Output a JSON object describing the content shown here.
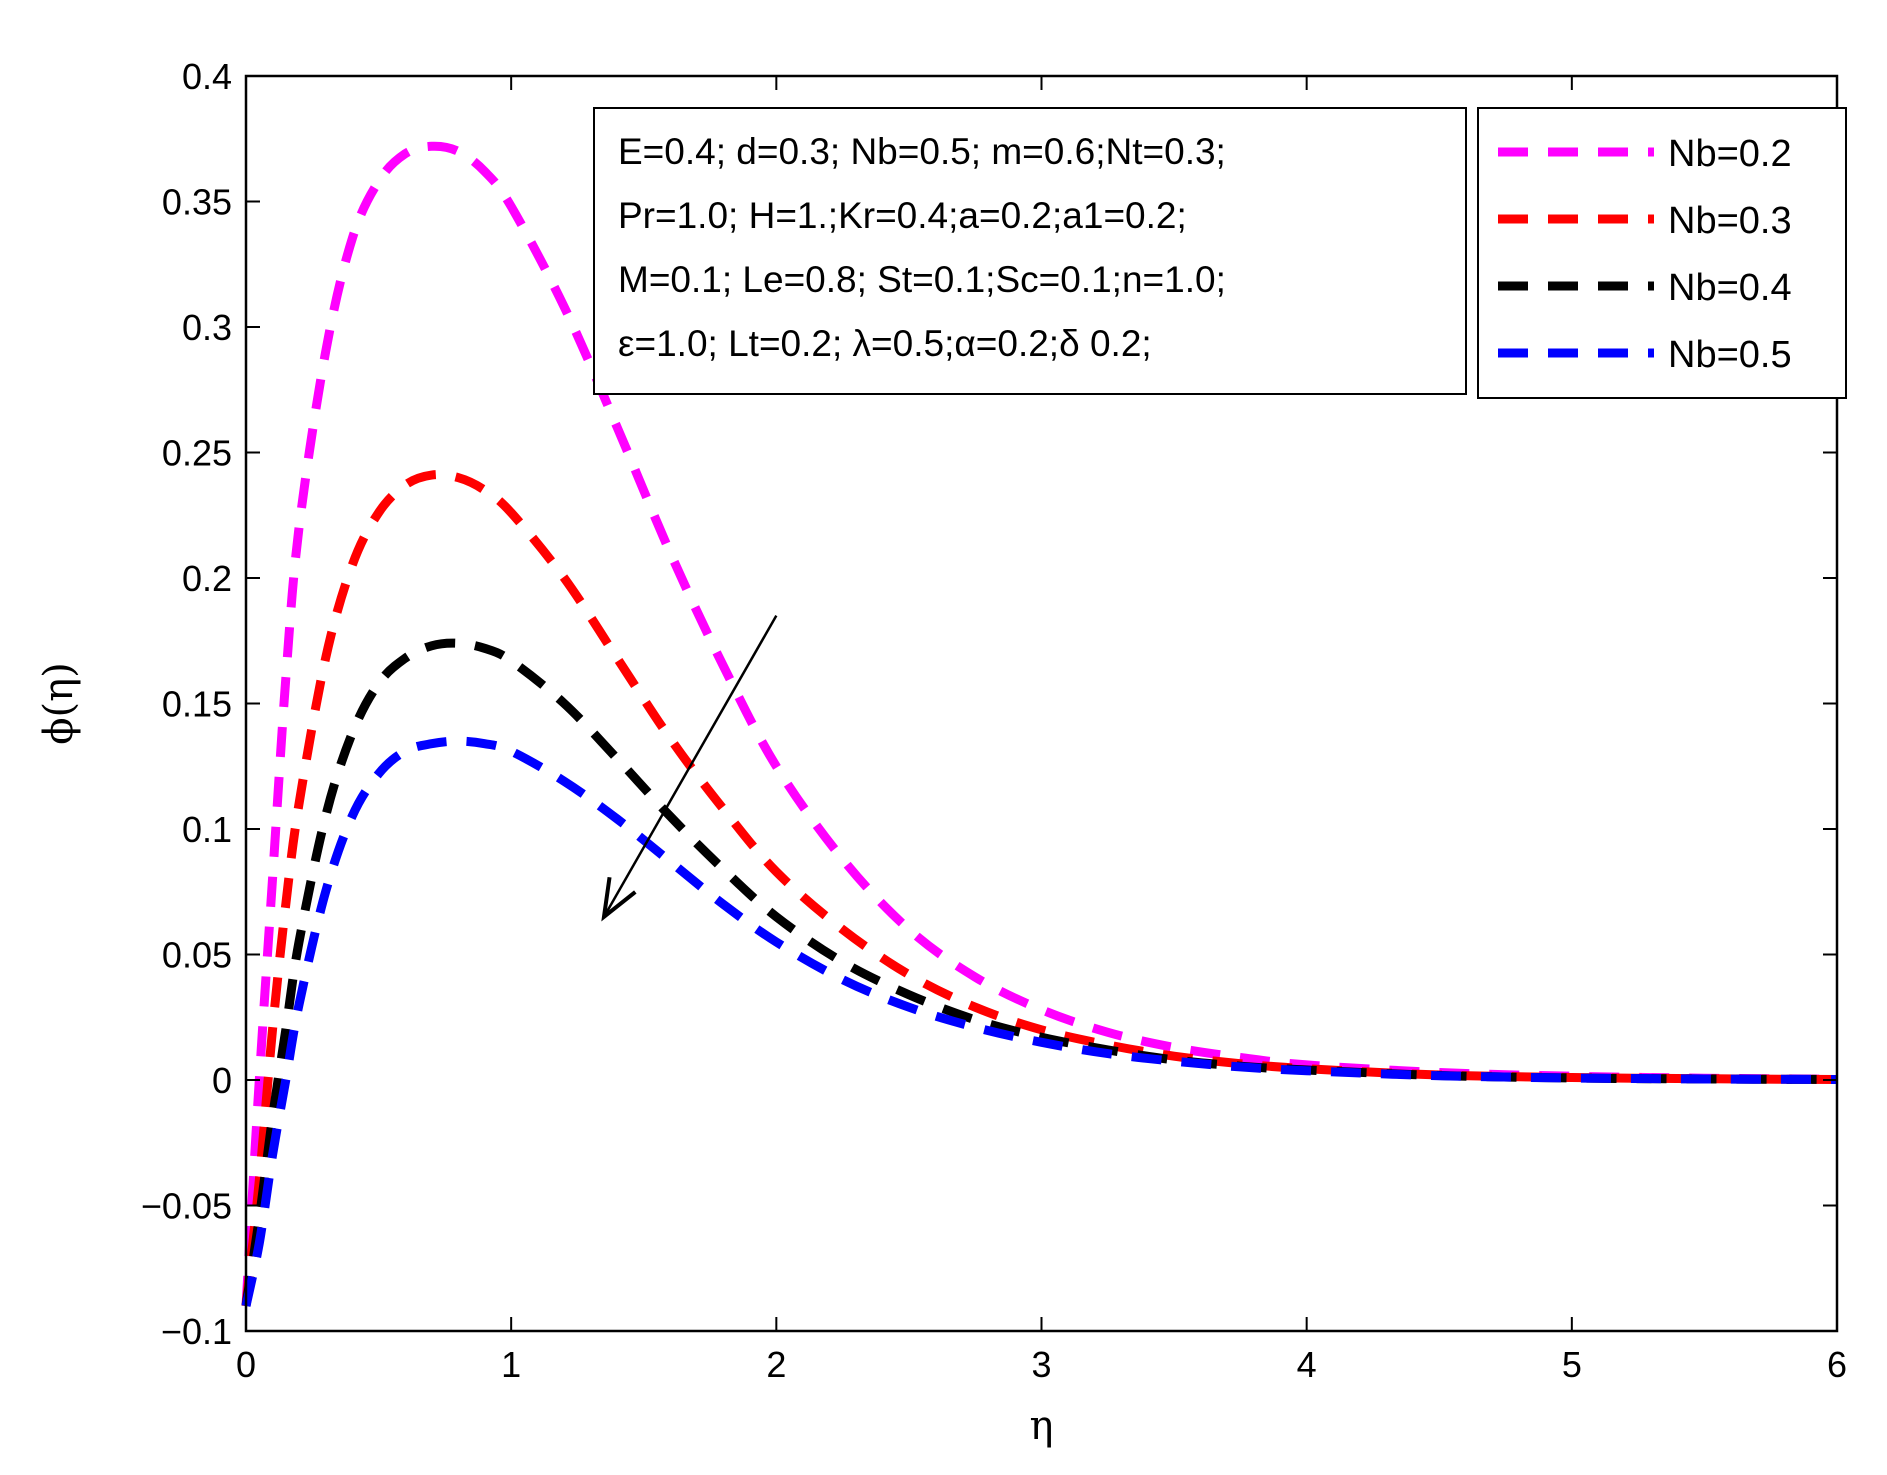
{
  "chart_data": {
    "type": "line",
    "title": "",
    "xlabel": "η",
    "ylabel": "ϕ(η)",
    "xlim": [
      0,
      6
    ],
    "ylim": [
      -0.1,
      0.4
    ],
    "xticks": [
      {
        "value": 0,
        "label": "0"
      },
      {
        "value": 1,
        "label": "1"
      },
      {
        "value": 2,
        "label": "2"
      },
      {
        "value": 3,
        "label": "3"
      },
      {
        "value": 4,
        "label": "4"
      },
      {
        "value": 5,
        "label": "5"
      },
      {
        "value": 6,
        "label": "6"
      }
    ],
    "yticks": [
      {
        "value": -0.1,
        "label": "−0.1"
      },
      {
        "value": -0.05,
        "label": "−0.05"
      },
      {
        "value": 0,
        "label": "0"
      },
      {
        "value": 0.05,
        "label": "0.05"
      },
      {
        "value": 0.1,
        "label": "0.1"
      },
      {
        "value": 0.15,
        "label": "0.15"
      },
      {
        "value": 0.2,
        "label": "0.2"
      },
      {
        "value": 0.25,
        "label": "0.25"
      },
      {
        "value": 0.3,
        "label": "0.3"
      },
      {
        "value": 0.35,
        "label": "0.35"
      },
      {
        "value": 0.4,
        "label": "0.4"
      }
    ],
    "grid": false,
    "legend_position": "top-right",
    "x": [
      0,
      0.05,
      0.1,
      0.15,
      0.2,
      0.3,
      0.4,
      0.5,
      0.6,
      0.7,
      0.8,
      0.9,
      1.0,
      1.2,
      1.4,
      1.6,
      1.8,
      2.0,
      2.25,
      2.5,
      2.75,
      3.0,
      3.25,
      3.5,
      3.75,
      4.0,
      4.5,
      5.0,
      5.5,
      6.0
    ],
    "series": [
      {
        "name": "Nb=0.2",
        "color": "#ff00ff",
        "values": [
          -0.09,
          0.0,
          0.08,
          0.16,
          0.22,
          0.29,
          0.335,
          0.358,
          0.369,
          0.372,
          0.37,
          0.362,
          0.348,
          0.308,
          0.26,
          0.21,
          0.165,
          0.125,
          0.088,
          0.06,
          0.041,
          0.028,
          0.019,
          0.013,
          0.009,
          0.006,
          0.003,
          0.0015,
          0.0007,
          0.0003
        ]
      },
      {
        "name": "Nb=0.3",
        "color": "#ff0000",
        "values": [
          -0.09,
          -0.04,
          0.02,
          0.07,
          0.11,
          0.168,
          0.205,
          0.226,
          0.237,
          0.241,
          0.24,
          0.235,
          0.226,
          0.2,
          0.168,
          0.136,
          0.108,
          0.083,
          0.06,
          0.042,
          0.029,
          0.02,
          0.014,
          0.0095,
          0.0065,
          0.0045,
          0.002,
          0.001,
          0.0005,
          0.0002
        ]
      },
      {
        "name": "Nb=0.4",
        "color": "#000000",
        "values": [
          -0.09,
          -0.055,
          -0.015,
          0.02,
          0.055,
          0.105,
          0.138,
          0.158,
          0.168,
          0.173,
          0.174,
          0.172,
          0.167,
          0.15,
          0.128,
          0.105,
          0.084,
          0.065,
          0.047,
          0.034,
          0.024,
          0.017,
          0.012,
          0.008,
          0.0055,
          0.004,
          0.0018,
          0.0008,
          0.0004,
          0.0002
        ]
      },
      {
        "name": "Nb=0.5",
        "color": "#0000ff",
        "values": [
          -0.09,
          -0.065,
          -0.03,
          0.0,
          0.03,
          0.075,
          0.105,
          0.122,
          0.131,
          0.134,
          0.135,
          0.134,
          0.131,
          0.119,
          0.104,
          0.087,
          0.07,
          0.055,
          0.04,
          0.029,
          0.021,
          0.015,
          0.0105,
          0.0075,
          0.0052,
          0.0037,
          0.0017,
          0.0008,
          0.0004,
          0.0002
        ]
      }
    ],
    "annotation_lines": [
      "E=0.4; d=0.3; Nb=0.5; m=0.6;Nt=0.3;",
      "Pr=1.0; H=1.;Kr=0.4;a=0.2;a1=0.2;",
      "M=0.1; Le=0.8; St=0.1;Sc=0.1;n=1.0;",
      "ε=1.0; Lt=0.2; λ=0.5;α=0.2;δ 0.2;"
    ],
    "arrow": {
      "from": [
        2.0,
        0.185
      ],
      "to": [
        1.35,
        0.065
      ]
    }
  }
}
